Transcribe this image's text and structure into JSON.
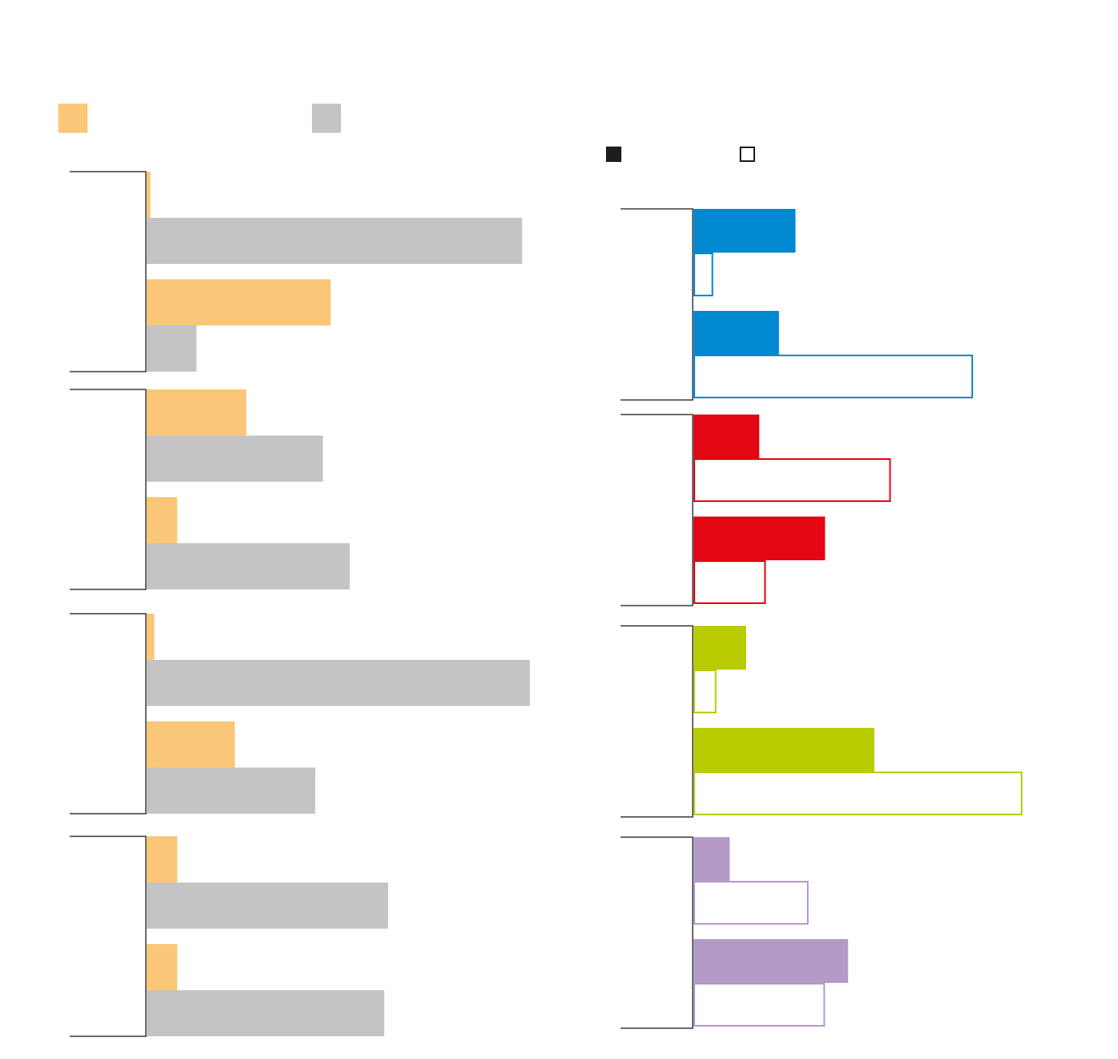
{
  "chart_data": [
    {
      "type": "bar",
      "orientation": "horizontal",
      "title": "",
      "xlabel": "",
      "ylabel": "",
      "xlim": [
        0,
        100
      ],
      "grid": false,
      "legend": {
        "placement": "top-left",
        "entries": [
          {
            "label": "",
            "color": "#f9c777"
          },
          {
            "label": "",
            "color": "#c4c4c4"
          }
        ]
      },
      "groups": [
        {
          "name": "",
          "bars": [
            {
              "series": 0,
              "value": 1
            },
            {
              "series": 1,
              "value": 98
            },
            {
              "series": 0,
              "value": 48
            },
            {
              "series": 1,
              "value": 13
            }
          ]
        },
        {
          "name": "",
          "bars": [
            {
              "series": 0,
              "value": 26
            },
            {
              "series": 1,
              "value": 46
            },
            {
              "series": 0,
              "value": 8
            },
            {
              "series": 1,
              "value": 53
            }
          ]
        },
        {
          "name": "",
          "bars": [
            {
              "series": 0,
              "value": 2
            },
            {
              "series": 1,
              "value": 100
            },
            {
              "series": 0,
              "value": 23
            },
            {
              "series": 1,
              "value": 44
            }
          ]
        },
        {
          "name": "",
          "bars": [
            {
              "series": 0,
              "value": 8
            },
            {
              "series": 1,
              "value": 63
            },
            {
              "series": 0,
              "value": 8
            },
            {
              "series": 1,
              "value": 62
            }
          ]
        }
      ]
    },
    {
      "type": "bar",
      "orientation": "horizontal",
      "title": "",
      "xlabel": "",
      "ylabel": "",
      "xlim": [
        0,
        100
      ],
      "grid": false,
      "legend": {
        "placement": "top",
        "entries": [
          {
            "label": "",
            "style": "filled",
            "color": "#1d1d1b"
          },
          {
            "label": "",
            "style": "outline",
            "color": "#1d1d1b"
          }
        ]
      },
      "groups": [
        {
          "name": "",
          "color": "#0089d1",
          "bars": [
            {
              "style": "filled",
              "value": 31
            },
            {
              "style": "outline",
              "value": 6
            },
            {
              "style": "filled",
              "value": 26
            },
            {
              "style": "outline",
              "value": 85
            }
          ]
        },
        {
          "name": "",
          "color": "#e30613",
          "bars": [
            {
              "style": "filled",
              "value": 20
            },
            {
              "style": "outline",
              "value": 60
            },
            {
              "style": "filled",
              "value": 40
            },
            {
              "style": "outline",
              "value": 22
            }
          ]
        },
        {
          "name": "",
          "color": "#b8cc00",
          "bars": [
            {
              "style": "filled",
              "value": 16
            },
            {
              "style": "outline",
              "value": 7
            },
            {
              "style": "filled",
              "value": 55
            },
            {
              "style": "outline",
              "value": 100
            }
          ]
        },
        {
          "name": "",
          "color": "#b49ac9",
          "bars": [
            {
              "style": "filled",
              "value": 11
            },
            {
              "style": "outline",
              "value": 35
            },
            {
              "style": "filled",
              "value": 47
            },
            {
              "style": "outline",
              "value": 40
            }
          ]
        }
      ]
    }
  ]
}
